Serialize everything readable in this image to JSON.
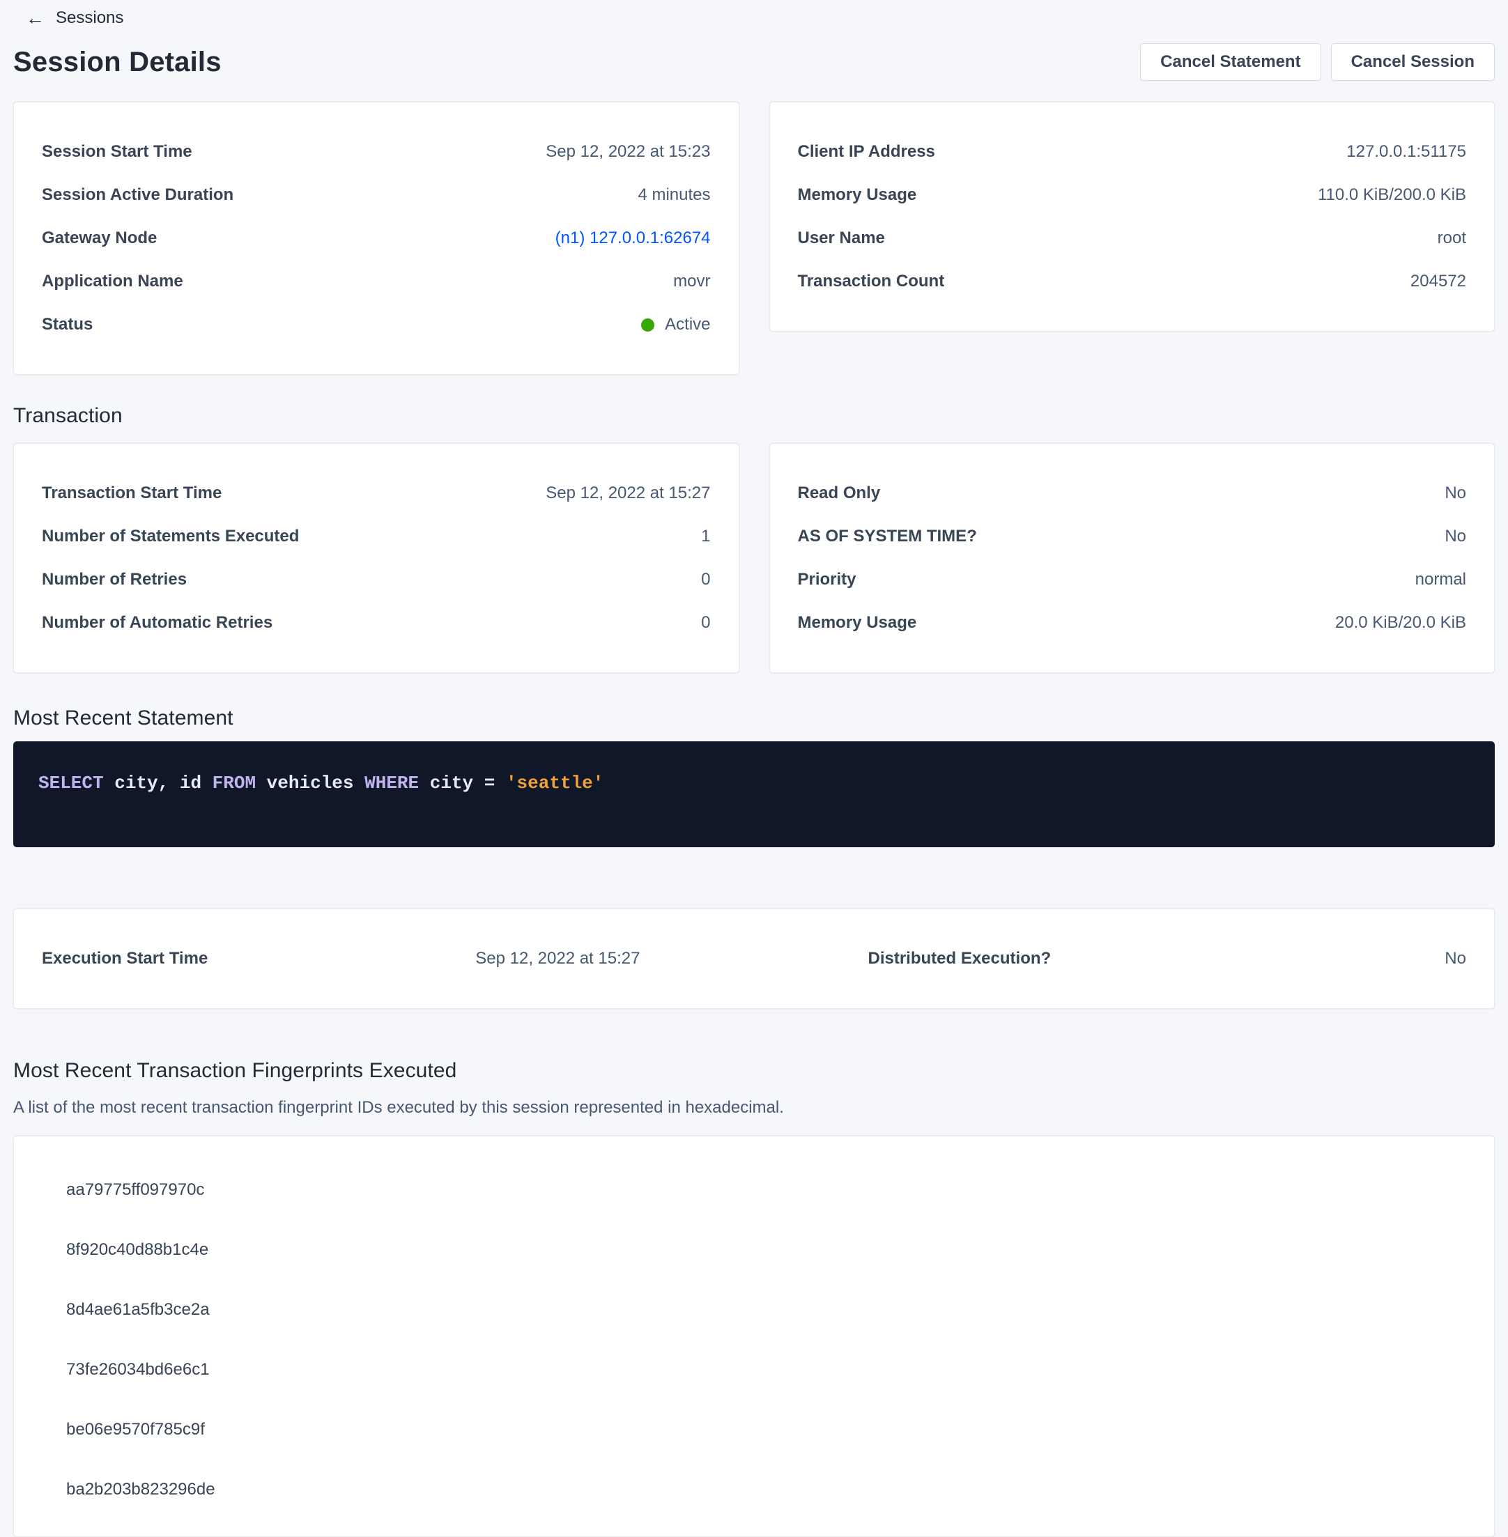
{
  "colors": {
    "link": "#0055ff",
    "status_active": "#37a806",
    "code_bg": "#0f1729",
    "code_keyword": "#c0b4ee",
    "code_text": "#e7ecf3",
    "code_string": "#efa13b"
  },
  "nav": {
    "back_icon": "←",
    "back_label": "Sessions"
  },
  "header": {
    "title": "Session Details",
    "cancel_statement_label": "Cancel Statement",
    "cancel_session_label": "Cancel Session"
  },
  "session": {
    "left": {
      "rows": [
        {
          "label": "Session Start Time",
          "value": "Sep 12, 2022 at 15:23"
        },
        {
          "label": "Session Active Duration",
          "value": "4 minutes"
        },
        {
          "label": "Gateway Node",
          "value": "(n1) 127.0.0.1:62674"
        },
        {
          "label": "Application Name",
          "value": "movr"
        },
        {
          "label": "Status",
          "value": "Active"
        }
      ]
    },
    "right": {
      "rows": [
        {
          "label": "Client IP Address",
          "value": "127.0.0.1:51175"
        },
        {
          "label": "Memory Usage",
          "value": "110.0 KiB/200.0 KiB"
        },
        {
          "label": "User Name",
          "value": "root"
        },
        {
          "label": "Transaction Count",
          "value": "204572"
        }
      ]
    }
  },
  "transaction": {
    "heading": "Transaction",
    "left": {
      "rows": [
        {
          "label": "Transaction Start Time",
          "value": "Sep 12, 2022 at 15:27"
        },
        {
          "label": "Number of Statements Executed",
          "value": "1"
        },
        {
          "label": "Number of Retries",
          "value": "0"
        },
        {
          "label": "Number of Automatic Retries",
          "value": "0"
        }
      ]
    },
    "right": {
      "rows": [
        {
          "label": "Read Only",
          "value": "No"
        },
        {
          "label": "AS OF SYSTEM TIME?",
          "value": "No"
        },
        {
          "label": "Priority",
          "value": "normal"
        },
        {
          "label": "Memory Usage",
          "value": "20.0 KiB/20.0 KiB"
        }
      ]
    }
  },
  "statement": {
    "heading": "Most Recent Statement",
    "sql_tokens": [
      "SELECT",
      " city, id ",
      "FROM",
      " vehicles ",
      "WHERE",
      " city = ",
      "'seattle'"
    ],
    "execution": {
      "label": "Execution Start Time",
      "value": "Sep 12, 2022 at 15:27",
      "dist_label": "Distributed Execution?",
      "dist_value": "No"
    }
  },
  "fingerprints": {
    "heading": "Most Recent Transaction Fingerprints Executed",
    "subtitle": "A list of the most recent transaction fingerprint IDs executed by this session represented in hexadecimal.",
    "items": [
      "aa79775ff097970c",
      "8f920c40d88b1c4e",
      "8d4ae61a5fb3ce2a",
      "73fe26034bd6e6c1",
      "be06e9570f785c9f",
      "ba2b203b823296de"
    ]
  }
}
